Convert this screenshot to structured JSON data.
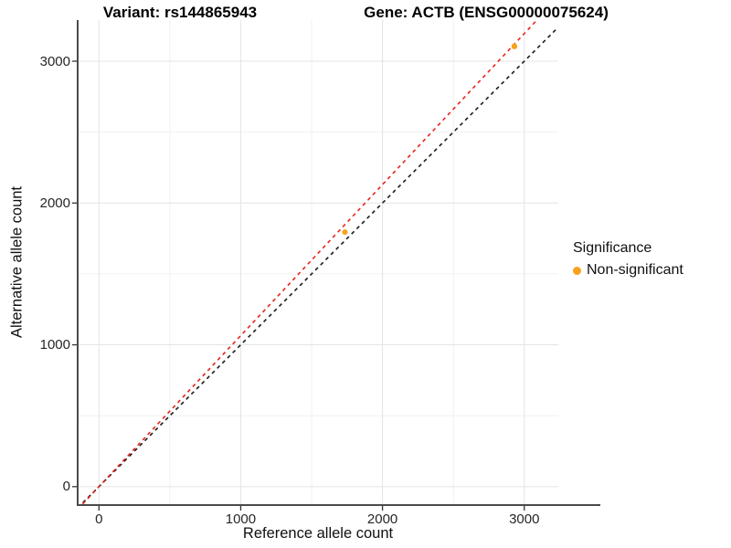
{
  "chart_data": {
    "type": "scatter",
    "titles": {
      "left": "Variant: rs144865943",
      "right": "Gene: ACTB (ENSG00000075624)"
    },
    "xlabel": "Reference allele count",
    "ylabel": "Alternative allele count",
    "xlim": [
      -150,
      3240
    ],
    "ylim": [
      -130,
      3290
    ],
    "x_major_ticks": [
      0,
      1000,
      2000,
      3000
    ],
    "y_major_ticks": [
      0,
      1000,
      2000,
      3000
    ],
    "x_minor_ticks": [
      500,
      1500,
      2500
    ],
    "y_minor_ticks": [
      500,
      1500,
      2500
    ],
    "grid": true,
    "points": [
      {
        "x": 1735,
        "y": 1795,
        "r": 3.0,
        "significance": "Non-significant"
      },
      {
        "x": 2930,
        "y": 3105,
        "r": 3.2,
        "significance": "Non-significant"
      }
    ],
    "reference_lines": [
      {
        "name": "identity",
        "slope": 1.0,
        "intercept": 0,
        "color": "#1a1a1a",
        "style": "dashed"
      },
      {
        "name": "allelic-ratio",
        "slope": 1.065,
        "intercept": 0,
        "color": "#e8221a",
        "style": "dashed"
      }
    ],
    "legend": {
      "position": "right",
      "title": "Significance",
      "entries": [
        {
          "label": "Non-significant",
          "color": "#f9a11b"
        }
      ]
    }
  },
  "colors": {
    "point": "#f9a11b",
    "major_grid": "#e4e4e4",
    "minor_grid": "#f1f1f1",
    "axis_line": "#4a4a4a",
    "tick_mark": "#333333"
  }
}
